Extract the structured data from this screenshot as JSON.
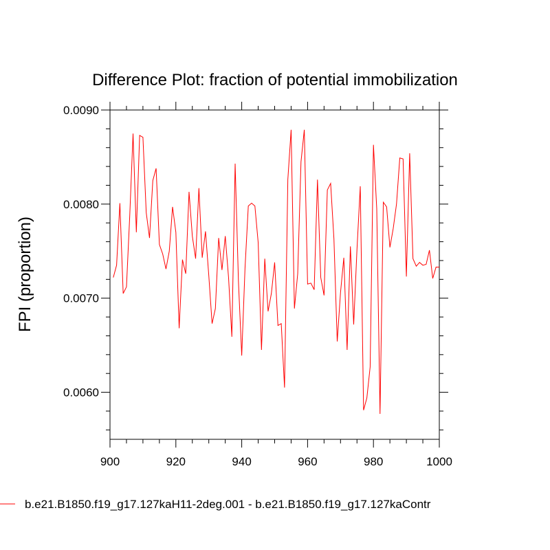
{
  "chart_data": {
    "type": "line",
    "title": "Difference Plot: fraction of potential immobilization",
    "xlabel": "",
    "ylabel": "FPI  (proportion)",
    "xlim": [
      900,
      1000
    ],
    "ylim": [
      0.0055,
      0.009
    ],
    "x_ticks": [
      900,
      920,
      940,
      960,
      980,
      1000
    ],
    "x_tick_labels": [
      "900",
      "920",
      "940",
      "960",
      "980",
      "1000"
    ],
    "y_ticks": [
      0.006,
      0.007,
      0.008,
      0.009
    ],
    "y_tick_labels": [
      "0.0060",
      "0.0070",
      "0.0080",
      "0.0090"
    ],
    "grid": false,
    "legend_position": "bottom",
    "series": [
      {
        "name": "b.e21.B1850.f19_g17.127kaH11-2deg.001 - b.e21.B1850.f19_g17.127kaContr",
        "color": "#ff0000",
        "x": [
          901,
          902,
          903,
          904,
          905,
          906,
          907,
          908,
          909,
          910,
          911,
          912,
          913,
          914,
          915,
          916,
          917,
          918,
          919,
          920,
          921,
          922,
          923,
          924,
          925,
          926,
          927,
          928,
          929,
          930,
          931,
          932,
          933,
          934,
          935,
          936,
          937,
          938,
          939,
          940,
          941,
          942,
          943,
          944,
          945,
          946,
          947,
          948,
          949,
          950,
          951,
          952,
          953,
          954,
          955,
          956,
          957,
          958,
          959,
          960,
          961,
          962,
          963,
          964,
          965,
          966,
          967,
          968,
          969,
          970,
          971,
          972,
          973,
          974,
          975,
          976,
          977,
          978,
          979,
          980,
          981,
          982,
          983,
          984,
          985,
          986,
          987,
          988,
          989,
          990,
          991,
          992,
          993,
          994,
          995,
          996,
          997,
          998,
          999,
          1000
        ],
        "values": [
          0.00722,
          0.00735,
          0.00801,
          0.00705,
          0.00712,
          0.00788,
          0.00875,
          0.0077,
          0.00873,
          0.00871,
          0.00791,
          0.00764,
          0.00825,
          0.00838,
          0.00757,
          0.00747,
          0.00731,
          0.0075,
          0.00797,
          0.0077,
          0.00668,
          0.00741,
          0.00726,
          0.00813,
          0.00766,
          0.00742,
          0.00817,
          0.00743,
          0.00771,
          0.00724,
          0.00673,
          0.00689,
          0.00764,
          0.0073,
          0.00766,
          0.00722,
          0.00659,
          0.00843,
          0.00718,
          0.00639,
          0.00732,
          0.00798,
          0.00801,
          0.00798,
          0.00759,
          0.00645,
          0.00742,
          0.00686,
          0.00705,
          0.00738,
          0.00671,
          0.00673,
          0.00605,
          0.00826,
          0.00879,
          0.00689,
          0.00726,
          0.00845,
          0.00879,
          0.00715,
          0.00716,
          0.00709,
          0.00826,
          0.00722,
          0.00703,
          0.00815,
          0.00822,
          0.00763,
          0.00654,
          0.00706,
          0.00743,
          0.00645,
          0.00755,
          0.00672,
          0.00752,
          0.00819,
          0.00581,
          0.00594,
          0.00627,
          0.00863,
          0.00795,
          0.00577,
          0.00802,
          0.00797,
          0.00754,
          0.00774,
          0.008,
          0.00849,
          0.00848,
          0.00723,
          0.00854,
          0.00742,
          0.00734,
          0.00738,
          0.00735,
          0.00736,
          0.00751,
          0.00721,
          0.00733,
          0.00733
        ]
      }
    ]
  }
}
